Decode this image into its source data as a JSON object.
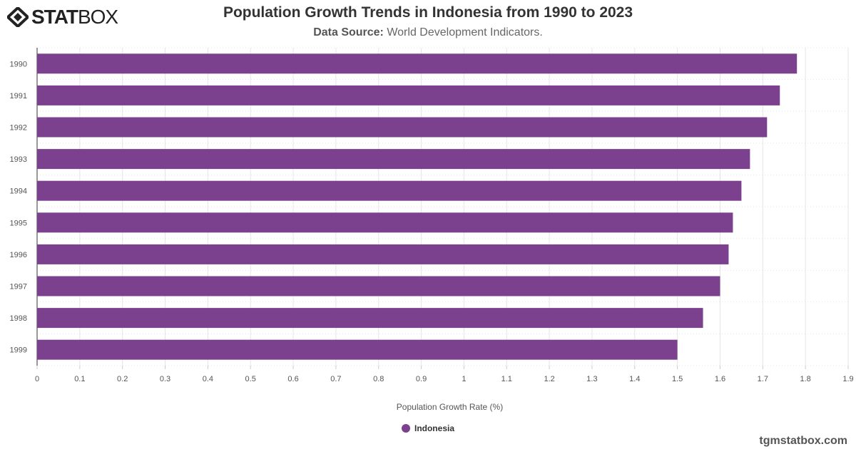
{
  "brand": {
    "logo_text_bold": "STAT",
    "logo_text_light": "BOX",
    "credit": "tgmstatbox.com"
  },
  "header": {
    "title": "Population Growth Trends in Indonesia from 1990 to 2023",
    "source_label": "Data Source:",
    "source_value": "World Development Indicators."
  },
  "chart_data": {
    "type": "bar",
    "orientation": "horizontal",
    "title": "Population Growth Trends in Indonesia from 1990 to 2023",
    "xlabel": "Population Growth Rate (%)",
    "ylabel": "",
    "xlim": [
      0,
      1.9
    ],
    "xticks": [
      "0",
      "0.1",
      "0.2",
      "0.3",
      "0.4",
      "0.5",
      "0.6",
      "0.7",
      "0.8",
      "0.9",
      "1",
      "1.1",
      "1.2",
      "1.3",
      "1.4",
      "1.5",
      "1.6",
      "1.7",
      "1.8",
      "1.9"
    ],
    "categories": [
      "1990",
      "1991",
      "1992",
      "1993",
      "1994",
      "1995",
      "1996",
      "1997",
      "1998",
      "1999"
    ],
    "series": [
      {
        "name": "Indonesia",
        "color": "#7b418e",
        "values": [
          1.78,
          1.74,
          1.71,
          1.67,
          1.65,
          1.63,
          1.62,
          1.6,
          1.56,
          1.5
        ]
      }
    ],
    "grid": true,
    "legend": "bottom-center"
  }
}
